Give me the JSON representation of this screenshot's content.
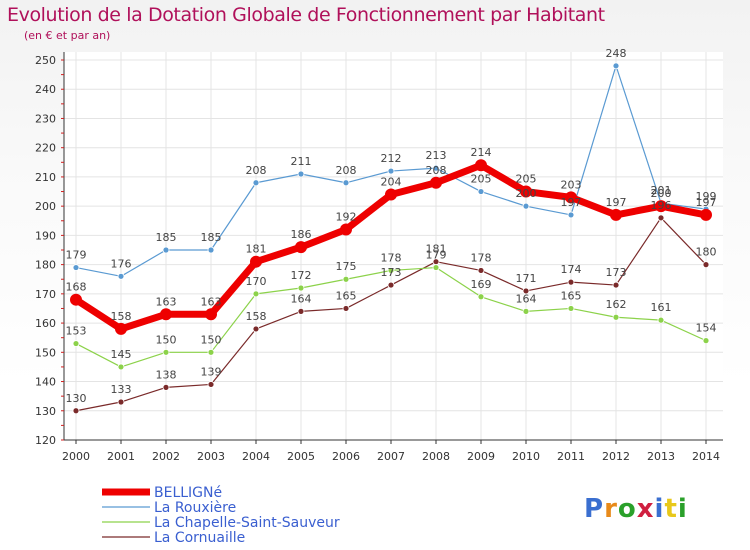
{
  "header": {
    "title": "Evolution de la Dotation Globale de Fonctionnement par Habitant",
    "subtitle": "(en € et par an)"
  },
  "logo": {
    "text": "Proxiti",
    "colors": [
      "#3a6fd0",
      "#e88a1a",
      "#2aa02a",
      "#d02040",
      "#3a6fd0",
      "#e8c81a",
      "#2aa02a"
    ]
  },
  "chart_data": {
    "type": "line",
    "x": [
      "2000",
      "2001",
      "2002",
      "2003",
      "2004",
      "2005",
      "2006",
      "2007",
      "2008",
      "2009",
      "2010",
      "2011",
      "2012",
      "2013",
      "2014"
    ],
    "ylim": [
      120,
      250
    ],
    "yticks": [
      120,
      130,
      140,
      150,
      160,
      170,
      180,
      190,
      200,
      210,
      220,
      230,
      240,
      250
    ],
    "grid": true,
    "legend": "bottom-left",
    "series": [
      {
        "name": "BELLIGNé",
        "color": "#ee0000",
        "width": 7,
        "r": 6,
        "values": [
          168,
          158,
          163,
          163,
          181,
          186,
          192,
          204,
          208,
          214,
          205,
          203,
          197,
          200,
          197
        ]
      },
      {
        "name": "La Rouxière",
        "color": "#5a9ad2",
        "width": 1.2,
        "r": 3,
        "values": [
          179,
          176,
          185,
          185,
          208,
          211,
          208,
          212,
          213,
          205,
          200,
          197,
          248,
          201,
          199
        ]
      },
      {
        "name": "La Chapelle-Saint-Sauveur",
        "color": "#8cd24a",
        "width": 1.2,
        "r": 3,
        "values": [
          153,
          145,
          150,
          150,
          170,
          172,
          175,
          178,
          179,
          169,
          164,
          165,
          162,
          161,
          154
        ]
      },
      {
        "name": "La Cornuaille",
        "color": "#7a2a2a",
        "width": 1.2,
        "r": 3,
        "values": [
          130,
          133,
          138,
          139,
          158,
          164,
          165,
          173,
          181,
          178,
          171,
          174,
          173,
          196,
          180
        ]
      }
    ]
  }
}
